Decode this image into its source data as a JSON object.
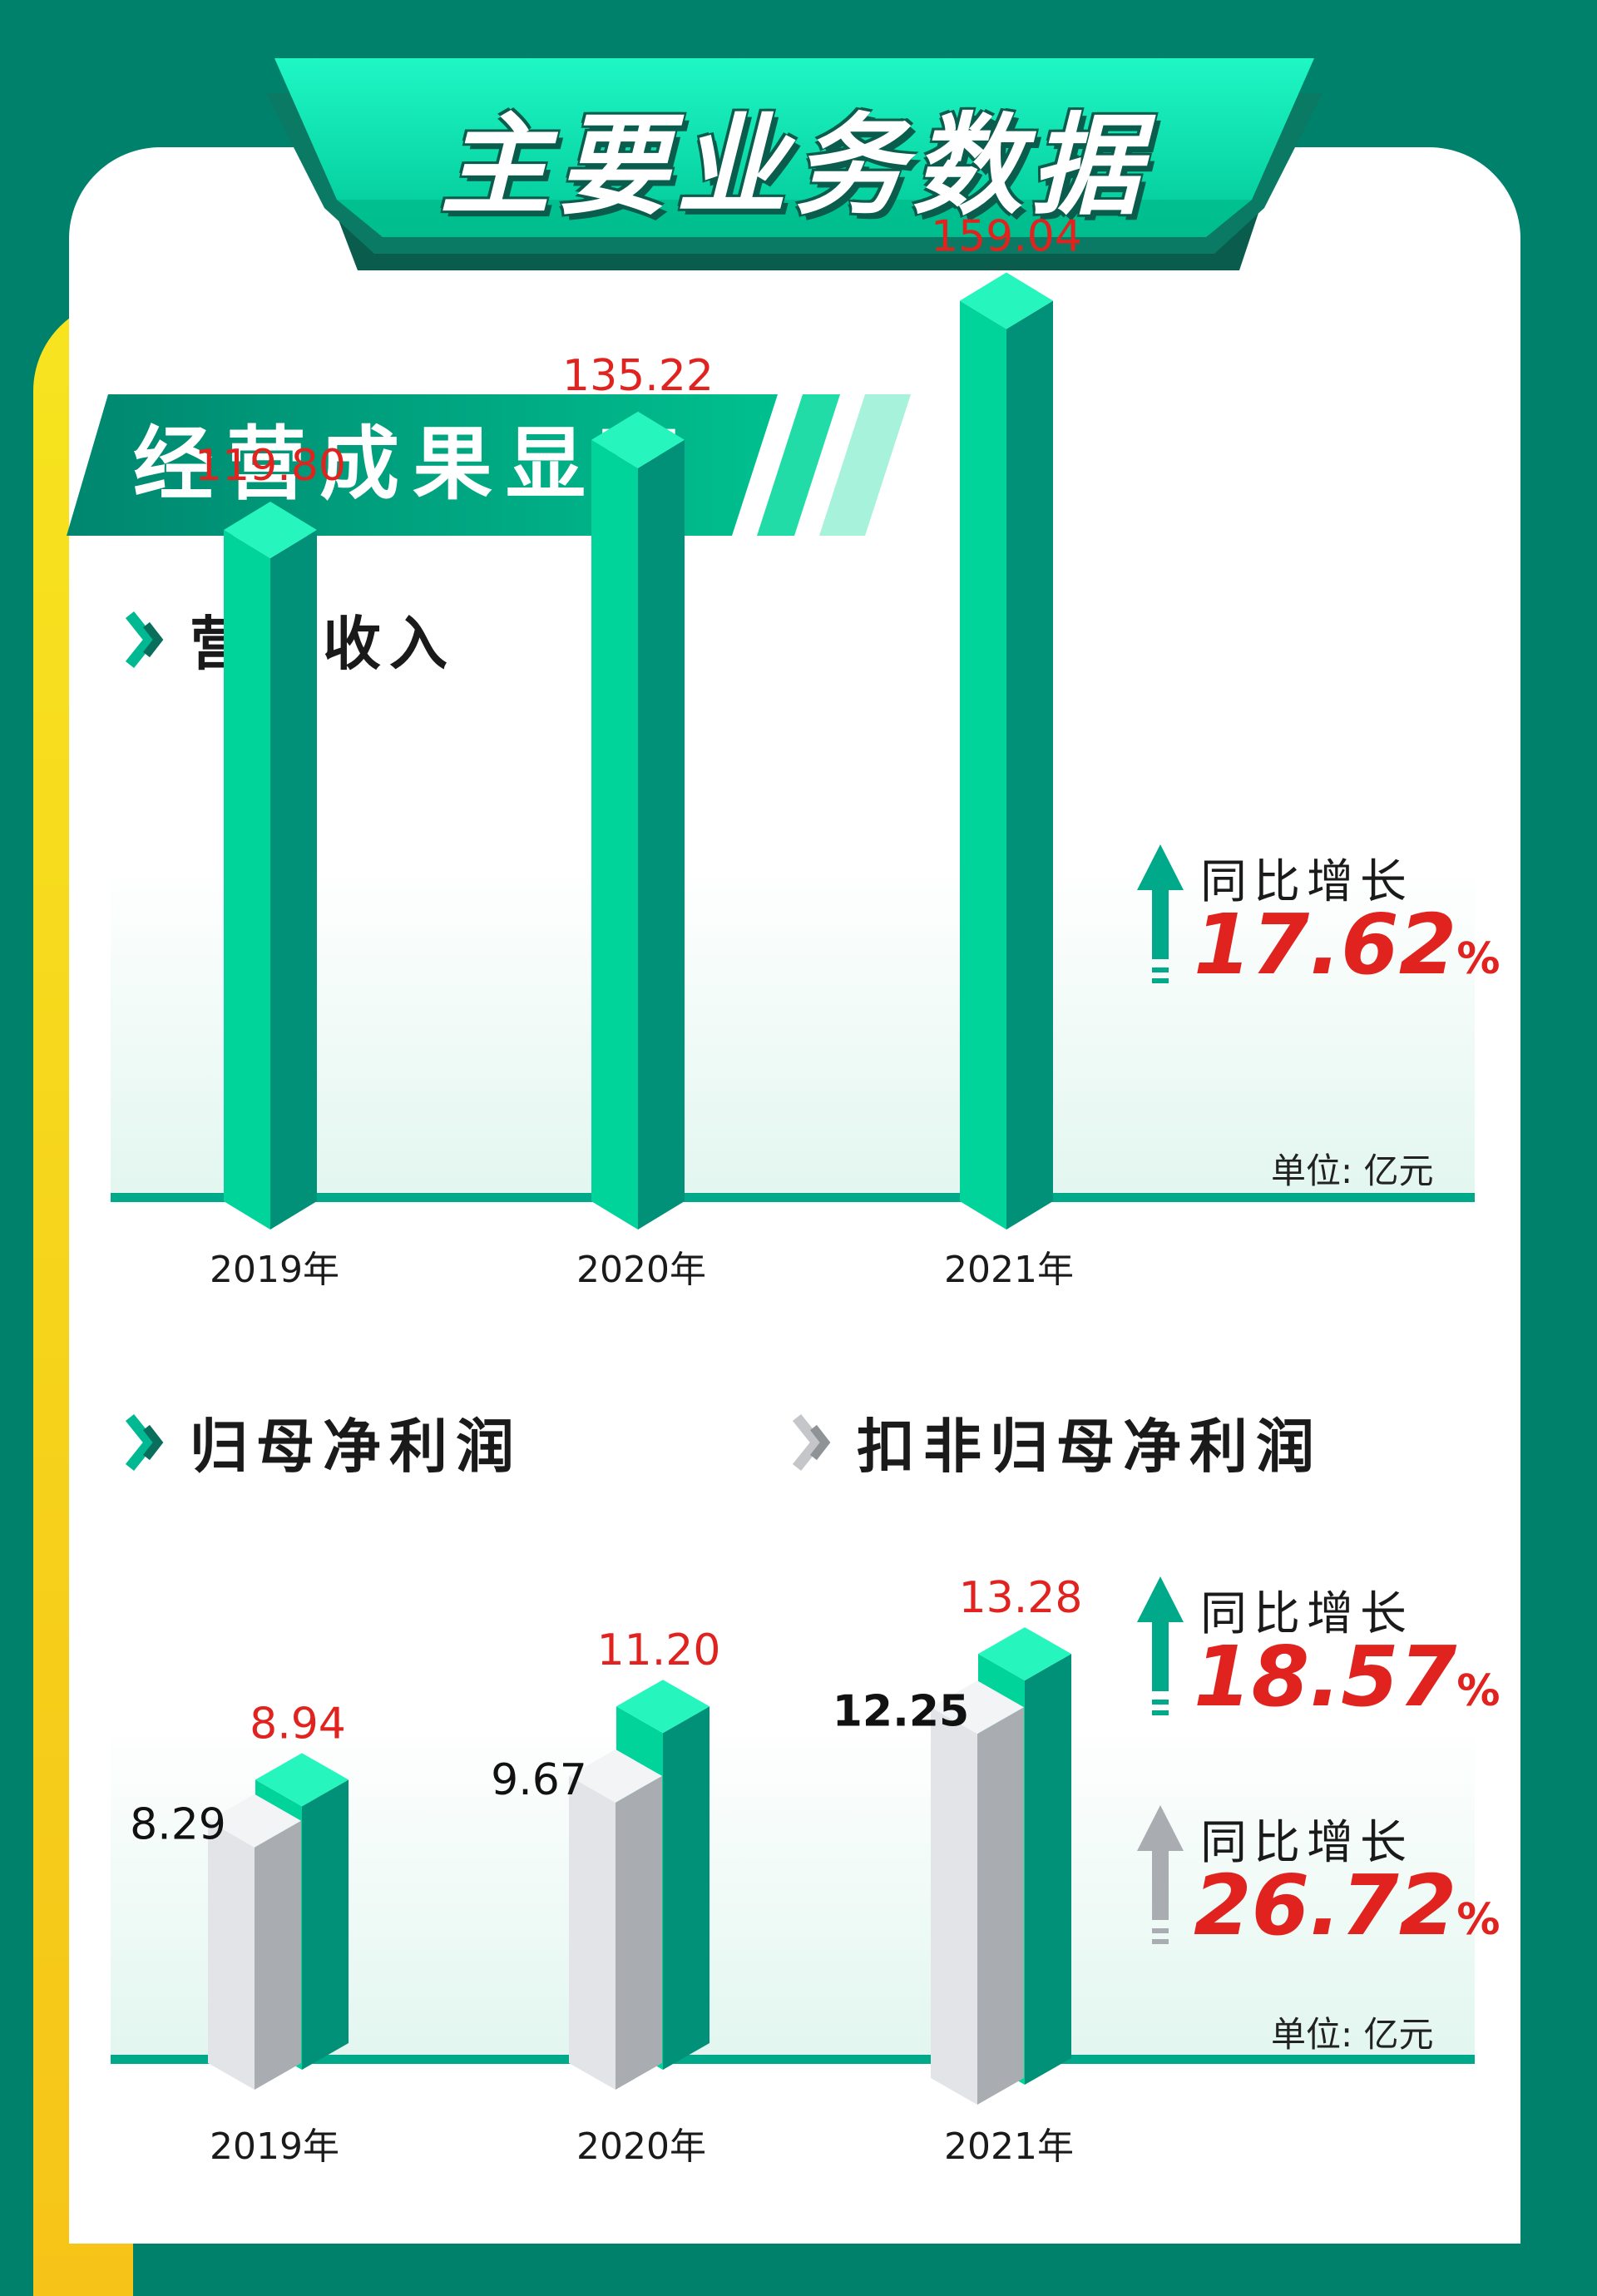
{
  "page_title": "主要业务数据",
  "section_title": "经营成果显著",
  "colors": {
    "background": "#00816c",
    "accent_yellow": "#f7e41f",
    "bar_green_front": "#00d49b",
    "bar_green_side": "#009178",
    "bar_green_top": "#26f5be",
    "bar_gray_front": "#e3e4e8",
    "bar_gray_side": "#a9acb1",
    "bar_gray_top": "#f3f4f6",
    "value_red": "#e0231f",
    "baseline": "#00a989"
  },
  "icons": {
    "heading_marker": "double-chevron-right-icon",
    "growth_arrow": "arrow-up-icon"
  },
  "revenue_section": {
    "heading": "营业收入",
    "unit": "单位: 亿元",
    "growth": {
      "caption": "同比增长",
      "value": "17.62",
      "pct": "%"
    }
  },
  "profit_section": {
    "heading_left": "归母净利润",
    "heading_right": "扣非归母净利润",
    "unit": "单位: 亿元",
    "growth_green": {
      "caption": "同比增长",
      "value": "18.57",
      "pct": "%"
    },
    "growth_gray": {
      "caption": "同比增长",
      "value": "26.72",
      "pct": "%"
    }
  },
  "chart_data": [
    {
      "type": "bar",
      "title": "营业收入",
      "unit": "单位: 亿元",
      "categories": [
        "2019年",
        "2020年",
        "2021年"
      ],
      "series": [
        {
          "values": [
            119.8,
            135.22,
            159.04
          ],
          "labels": [
            "119.80",
            "135.22",
            "159.04"
          ]
        }
      ],
      "ylim": [
        0,
        170
      ]
    },
    {
      "type": "bar",
      "title": "归母净利润",
      "unit": "单位: 亿元",
      "categories": [
        "2019年",
        "2020年",
        "2021年"
      ],
      "series": [
        {
          "name": "归母净利润",
          "values": [
            8.94,
            11.2,
            13.28
          ],
          "labels": [
            "8.94",
            "11.20",
            "13.28"
          ]
        },
        {
          "name": "扣非归母净利润",
          "values": [
            8.29,
            9.67,
            12.25
          ],
          "labels": [
            "8.29",
            "9.67",
            "12.25"
          ]
        }
      ],
      "ylim": [
        0,
        14
      ]
    }
  ]
}
